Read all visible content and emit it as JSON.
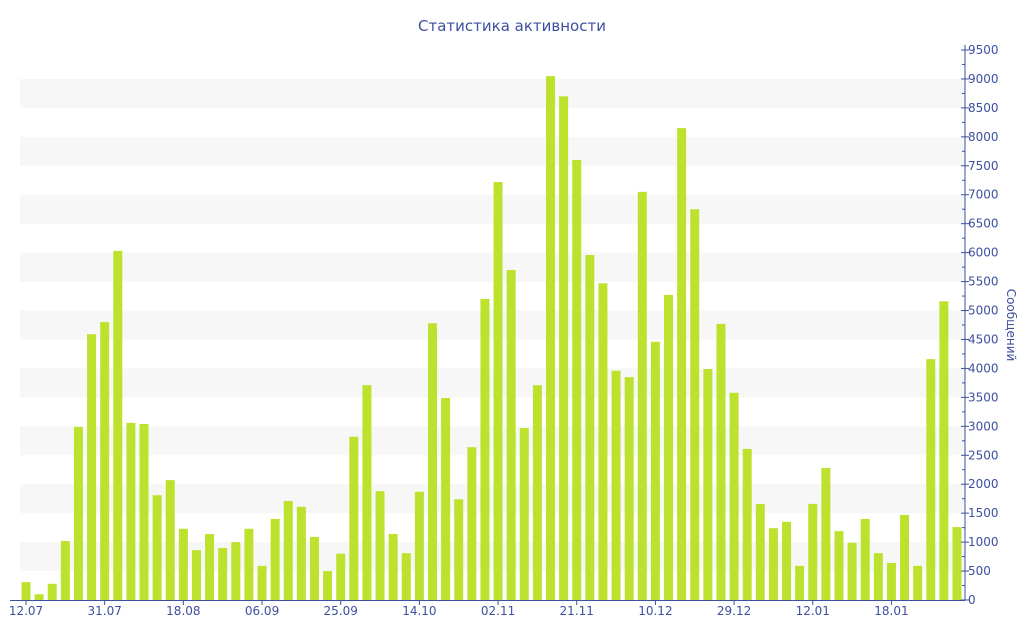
{
  "chart_data": {
    "type": "bar",
    "title": "Статистика активности",
    "xlabel": "",
    "ylabel": "Сообщений",
    "ylim": [
      0,
      9500
    ],
    "ytick_step": 500,
    "grid": "alternating horizontal bands",
    "bar_color": "#bde22e",
    "text_color": "#3d4fa0",
    "x_tick_labels": [
      {
        "index": 0,
        "label": "12.07"
      },
      {
        "index": 6,
        "label": "31.07"
      },
      {
        "index": 12,
        "label": "18.08"
      },
      {
        "index": 18,
        "label": "06.09"
      },
      {
        "index": 24,
        "label": "25.09"
      },
      {
        "index": 30,
        "label": "14.10"
      },
      {
        "index": 36,
        "label": "02.11"
      },
      {
        "index": 42,
        "label": "21.11"
      },
      {
        "index": 48,
        "label": "10.12"
      },
      {
        "index": 54,
        "label": "29.12"
      },
      {
        "index": 60,
        "label": "12.01"
      },
      {
        "index": 66,
        "label": "18.01"
      }
    ],
    "values": [
      310,
      100,
      280,
      1020,
      2990,
      4590,
      4800,
      6030,
      3060,
      3040,
      1810,
      2070,
      1230,
      860,
      1140,
      900,
      1000,
      1230,
      590,
      1400,
      1710,
      1610,
      1090,
      500,
      800,
      2820,
      3710,
      1880,
      1140,
      810,
      1870,
      4780,
      3490,
      1740,
      2640,
      5200,
      7220,
      5700,
      2970,
      3710,
      9050,
      8700,
      7600,
      5960,
      5470,
      3960,
      3850,
      7050,
      4460,
      5270,
      8150,
      6750,
      3990,
      4770,
      3580,
      2610,
      1660,
      1240,
      1350,
      590,
      1660,
      2280,
      1190,
      990,
      1400,
      810,
      640,
      1470,
      590,
      4160,
      5160,
      1260
    ]
  }
}
